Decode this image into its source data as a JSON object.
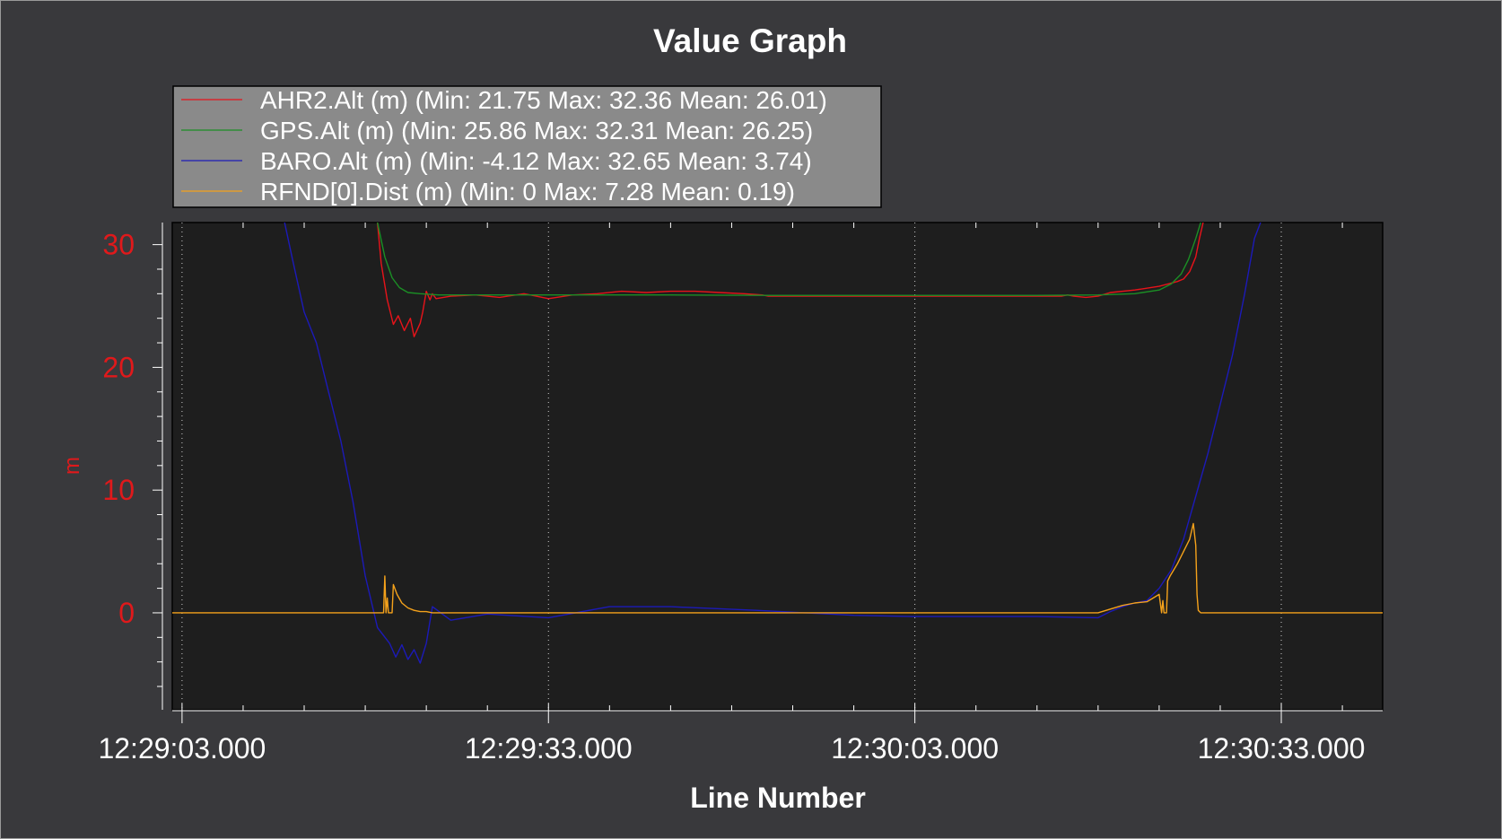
{
  "window": {
    "title": "Value Graph"
  },
  "chart_data": {
    "type": "line",
    "title": "Value Graph",
    "xlabel": "Line Number",
    "ylabel": "m",
    "x_tick_labels": [
      "12:29:03.000",
      "12:29:33.000",
      "12:30:03.000",
      "12:30:33.000"
    ],
    "x_tick_values": [
      0,
      30,
      60,
      90
    ],
    "x_unit": "seconds after 12:29:03.000",
    "xlim": [
      -0.8,
      98.3
    ],
    "ylim": [
      -7.9,
      31.8
    ],
    "y_ticks": [
      0,
      10,
      20,
      30
    ],
    "grid": true,
    "legend_position": "top-left",
    "background": "#1e1e1e",
    "series": [
      {
        "name": "AHR2.Alt (m)",
        "legend_label": "AHR2.Alt (m) (Min: 21.75 Max: 32.36 Mean: 26.01)",
        "color": "#e8131a",
        "x": [
          16.0,
          16.3,
          16.8,
          17.3,
          17.7,
          18.2,
          18.7,
          19.0,
          19.5,
          19.7,
          20.0,
          20.3,
          20.5,
          20.8,
          22.0,
          24.0,
          26.0,
          28.0,
          30.0,
          32.0,
          34.0,
          36.0,
          38.0,
          40.0,
          42.0,
          44.0,
          46.0,
          47.5,
          48.0,
          55.0,
          60.0,
          65.0,
          70.0,
          72.0,
          72.5,
          73.0,
          74.0,
          75.0,
          76.0,
          78.0,
          80.0,
          81.5,
          82.0,
          82.5,
          83.0,
          83.3,
          83.6
        ],
        "y": [
          31.8,
          28.5,
          25.5,
          23.5,
          24.2,
          23.0,
          24.0,
          22.5,
          23.6,
          24.5,
          26.2,
          25.5,
          26.0,
          25.6,
          25.8,
          25.9,
          25.7,
          26.0,
          25.6,
          25.9,
          26.0,
          26.2,
          26.1,
          26.2,
          26.2,
          26.1,
          26.0,
          25.9,
          25.8,
          25.8,
          25.8,
          25.8,
          25.8,
          25.8,
          25.9,
          25.8,
          25.7,
          25.8,
          26.1,
          26.3,
          26.6,
          27.0,
          27.2,
          27.8,
          29.0,
          30.5,
          31.8
        ]
      },
      {
        "name": "GPS.Alt (m)",
        "legend_label": "GPS.Alt (m) (Min: 25.86 Max: 32.31 Mean: 26.25)",
        "color": "#1b8f25",
        "x": [
          16.0,
          16.6,
          17.2,
          17.8,
          18.5,
          19.5,
          21.0,
          30.0,
          40.0,
          48.0,
          60.0,
          70.0,
          75.0,
          78.0,
          80.0,
          81.0,
          81.8,
          82.4,
          83.0,
          83.4
        ],
        "y": [
          31.8,
          29.0,
          27.3,
          26.5,
          26.1,
          26.0,
          25.9,
          25.9,
          25.9,
          25.86,
          25.86,
          25.86,
          25.9,
          26.0,
          26.3,
          26.8,
          27.6,
          28.8,
          30.5,
          31.8
        ]
      },
      {
        "name": "BARO.Alt (m)",
        "legend_label": "BARO.Alt (m) (Min: -4.12 Max: 32.65 Mean: 3.74)",
        "color": "#1c1ab8",
        "x": [
          8.4,
          9.0,
          10.0,
          11.0,
          12.0,
          13.0,
          14.0,
          15.0,
          16.0,
          17.0,
          17.5,
          18.0,
          18.5,
          19.0,
          19.5,
          20.0,
          20.5,
          22.0,
          25.0,
          30.0,
          35.0,
          40.0,
          47.0,
          55.0,
          60.0,
          70.0,
          75.0,
          76.0,
          77.0,
          78.0,
          79.0,
          80.0,
          81.0,
          82.0,
          83.0,
          84.0,
          85.0,
          86.0,
          87.0,
          87.8,
          88.3
        ],
        "y": [
          31.8,
          29.0,
          24.5,
          22.0,
          18.0,
          14.0,
          9.0,
          3.0,
          -1.2,
          -2.5,
          -3.6,
          -2.6,
          -3.8,
          -3.0,
          -4.1,
          -2.5,
          0.5,
          -0.6,
          -0.1,
          -0.4,
          0.5,
          0.5,
          0.2,
          -0.2,
          -0.3,
          -0.3,
          -0.4,
          0.1,
          0.5,
          0.8,
          1.0,
          2.0,
          3.5,
          6.0,
          9.5,
          13.0,
          17.0,
          21.0,
          26.0,
          30.5,
          31.8
        ]
      },
      {
        "name": "RFND[0].Dist (m)",
        "legend_label": "RFND[0].Dist (m) (Min: 0 Max: 7.28 Mean: 0.19)",
        "color": "#f5a21b",
        "x": [
          -0.8,
          16.5,
          16.6,
          16.7,
          16.8,
          16.9,
          17.0,
          17.2,
          17.3,
          17.6,
          18.0,
          18.5,
          19.0,
          19.5,
          20.0,
          20.5,
          75.0,
          76.0,
          77.0,
          78.0,
          79.0,
          80.0,
          80.2,
          80.3,
          80.4,
          80.6,
          80.7,
          80.9,
          81.5,
          82.0,
          82.5,
          82.8,
          83.0,
          83.1,
          83.2,
          83.4,
          98.3
        ],
        "y": [
          0,
          0,
          3.0,
          0,
          1.2,
          0,
          0,
          0,
          2.3,
          1.5,
          0.8,
          0.4,
          0.2,
          0.1,
          0.1,
          0,
          0,
          0.3,
          0.6,
          0.8,
          0.9,
          1.5,
          0,
          1.0,
          0,
          0,
          2.6,
          3.0,
          4.0,
          5.0,
          6.0,
          7.28,
          5.5,
          1.5,
          0.2,
          0,
          0
        ]
      }
    ]
  }
}
